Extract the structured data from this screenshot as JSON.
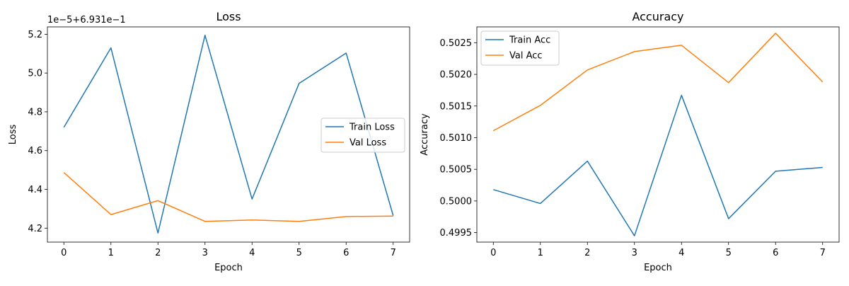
{
  "chart_data": [
    {
      "type": "line",
      "title": "Loss",
      "xlabel": "Epoch",
      "ylabel": "Loss",
      "offset_text": "1e−5+6.931e−1",
      "x": [
        0,
        1,
        2,
        3,
        4,
        5,
        6,
        7
      ],
      "xticks": [
        "0",
        "1",
        "2",
        "3",
        "4",
        "5",
        "6",
        "7"
      ],
      "xlim": [
        -0.35,
        7.35
      ],
      "yticks": [
        "4.2",
        "4.4",
        "4.6",
        "4.8",
        "5.0",
        "5.2"
      ],
      "ytick_values": [
        4.2,
        4.4,
        4.6,
        4.8,
        5.0,
        5.2
      ],
      "ylim": [
        4.128,
        5.238
      ],
      "legend_position": "center-right",
      "series": [
        {
          "name": "Train Loss",
          "color": "#1f77b4",
          "values": [
            4.72,
            5.13,
            4.175,
            5.195,
            4.35,
            4.947,
            5.103,
            4.265
          ]
        },
        {
          "name": "Val Loss",
          "color": "#ff7f0e",
          "values": [
            4.487,
            4.27,
            4.342,
            4.235,
            4.242,
            4.235,
            4.26,
            4.262
          ]
        }
      ]
    },
    {
      "type": "line",
      "title": "Accuracy",
      "xlabel": "Epoch",
      "ylabel": "Accuracy",
      "x": [
        0,
        1,
        2,
        3,
        4,
        5,
        6,
        7
      ],
      "xticks": [
        "0",
        "1",
        "2",
        "3",
        "4",
        "5",
        "6",
        "7"
      ],
      "xlim": [
        -0.35,
        7.35
      ],
      "yticks": [
        "0.4995",
        "0.5000",
        "0.5005",
        "0.5010",
        "0.5015",
        "0.5020",
        "0.5025"
      ],
      "ytick_values": [
        0.4995,
        0.5,
        0.5005,
        0.501,
        0.5015,
        0.502,
        0.5025
      ],
      "ylim": [
        0.49935,
        0.50275
      ],
      "legend_position": "top-left",
      "series": [
        {
          "name": "Train Acc",
          "color": "#1f77b4",
          "values": [
            0.50018,
            0.49996,
            0.50063,
            0.49945,
            0.50167,
            0.49972,
            0.50047,
            0.50053
          ]
        },
        {
          "name": "Val Acc",
          "color": "#ff7f0e",
          "values": [
            0.50111,
            0.50151,
            0.50207,
            0.50236,
            0.50246,
            0.50187,
            0.50265,
            0.50188
          ]
        }
      ]
    }
  ]
}
